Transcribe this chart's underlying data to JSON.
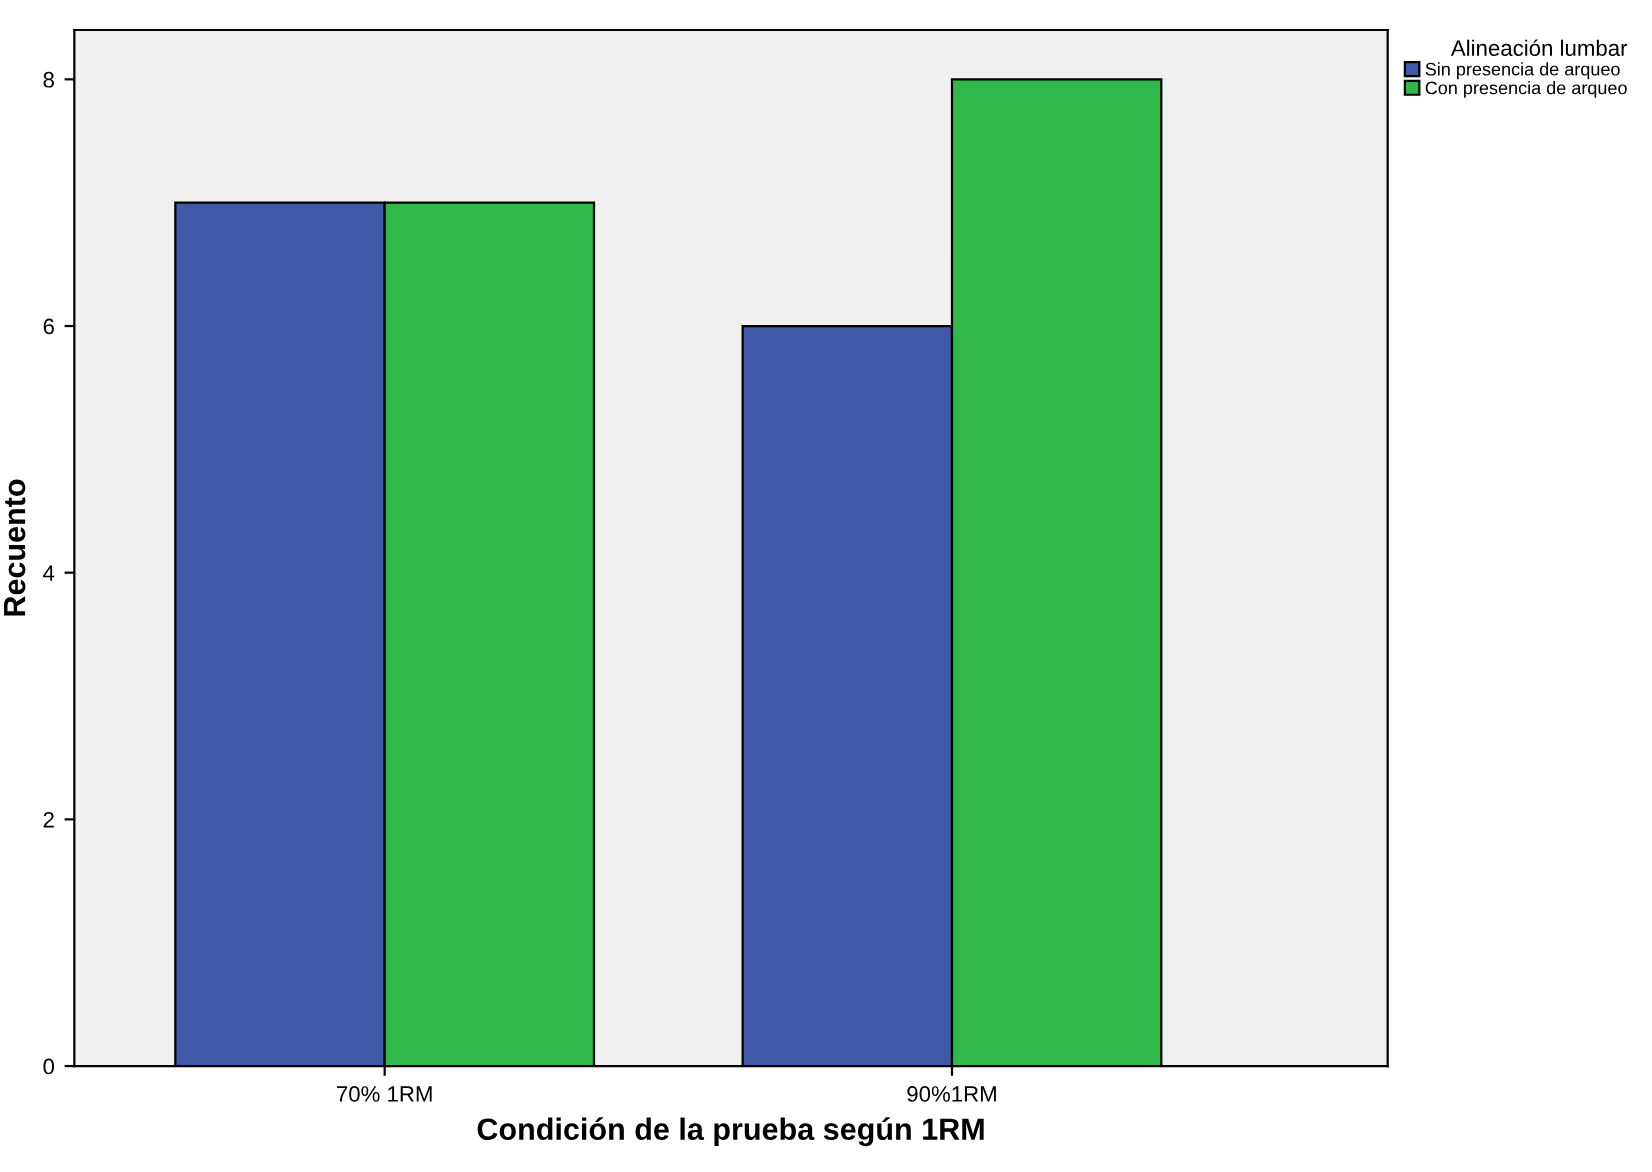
{
  "chart_data": {
    "type": "bar",
    "categories": [
      "70% 1RM",
      "90%1RM"
    ],
    "series": [
      {
        "name": "Sin presencia de arqueo",
        "color": "#3f58a8",
        "values": [
          7,
          6
        ]
      },
      {
        "name": "Con presencia de arqueo",
        "color": "#30b94a",
        "values": [
          7,
          8
        ]
      }
    ],
    "xlabel": "Condición de la prueba según 1RM",
    "ylabel": "Recuento",
    "legend_title": "Alineación lumbar",
    "legend": "top right",
    "ylim": [
      0,
      8.4
    ],
    "yticks": [
      0,
      2,
      4,
      6,
      8
    ],
    "grid": false
  }
}
